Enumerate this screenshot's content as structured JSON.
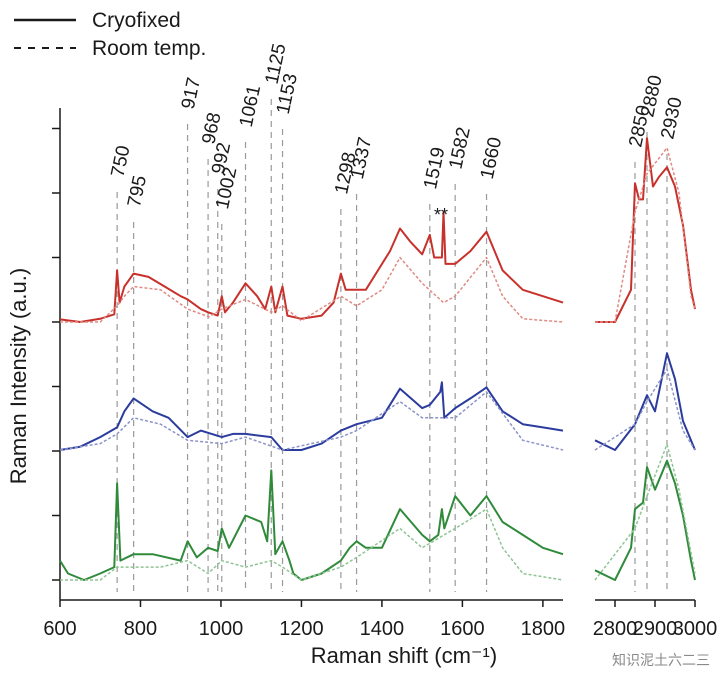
{
  "chart_data": {
    "type": "line",
    "xlabel": "Raman shift (cm⁻¹)",
    "ylabel": "Raman Intensity (a.u.)",
    "x_axis_segments": [
      {
        "range": [
          600,
          1850
        ],
        "ticks": [
          600,
          800,
          1000,
          1200,
          1400,
          1600,
          1800
        ]
      },
      {
        "range": [
          2750,
          3000
        ],
        "ticks": [
          2800,
          2900,
          3000
        ]
      }
    ],
    "y_ticks": "unlabeled",
    "legend": {
      "placement": "top-left",
      "entries": [
        {
          "label": "Cryofixed",
          "style": "solid"
        },
        {
          "label": "Room temp.",
          "style": "dashed"
        }
      ]
    },
    "peak_markers": [
      {
        "label": "750",
        "x": 742
      },
      {
        "label": "795",
        "x": 783
      },
      {
        "label": "917",
        "x": 917
      },
      {
        "label": "968",
        "x": 968
      },
      {
        "label": "992",
        "x": 992
      },
      {
        "label": "1002",
        "x": 1002
      },
      {
        "label": "1061",
        "x": 1061
      },
      {
        "label": "1125",
        "x": 1125
      },
      {
        "label": "1153",
        "x": 1153
      },
      {
        "label": "1298",
        "x": 1298
      },
      {
        "label": "1337",
        "x": 1337
      },
      {
        "label": "1519",
        "x": 1519
      },
      {
        "label": "1582",
        "x": 1582
      },
      {
        "label": "1660",
        "x": 1660
      },
      {
        "label": "2850",
        "x": 2850
      },
      {
        "label": "2880",
        "x": 2880
      },
      {
        "label": "2930",
        "x": 2930
      }
    ],
    "annotations": [
      "**"
    ],
    "series": [
      {
        "name": "Cryofixed",
        "color": "#c8312b",
        "style": "solid",
        "baseline": 0,
        "low": [
          [
            600,
            0.04
          ],
          [
            650,
            0.0
          ],
          [
            700,
            0.05
          ],
          [
            735,
            0.12
          ],
          [
            742,
            0.8
          ],
          [
            748,
            0.3
          ],
          [
            760,
            0.55
          ],
          [
            783,
            0.75
          ],
          [
            820,
            0.7
          ],
          [
            860,
            0.55
          ],
          [
            900,
            0.4
          ],
          [
            917,
            0.35
          ],
          [
            950,
            0.2
          ],
          [
            968,
            0.15
          ],
          [
            992,
            0.1
          ],
          [
            1002,
            0.4
          ],
          [
            1010,
            0.15
          ],
          [
            1030,
            0.3
          ],
          [
            1061,
            0.6
          ],
          [
            1090,
            0.4
          ],
          [
            1110,
            0.2
          ],
          [
            1125,
            0.55
          ],
          [
            1135,
            0.15
          ],
          [
            1153,
            0.55
          ],
          [
            1165,
            0.1
          ],
          [
            1200,
            0.05
          ],
          [
            1250,
            0.1
          ],
          [
            1280,
            0.3
          ],
          [
            1298,
            0.75
          ],
          [
            1310,
            0.5
          ],
          [
            1337,
            0.5
          ],
          [
            1360,
            0.5
          ],
          [
            1380,
            0.7
          ],
          [
            1420,
            1.1
          ],
          [
            1445,
            1.45
          ],
          [
            1470,
            1.25
          ],
          [
            1500,
            1.05
          ],
          [
            1519,
            1.35
          ],
          [
            1530,
            1.0
          ],
          [
            1549,
            1.0
          ],
          [
            1553,
            1.7
          ],
          [
            1558,
            0.9
          ],
          [
            1582,
            0.9
          ],
          [
            1620,
            1.1
          ],
          [
            1660,
            1.4
          ],
          [
            1700,
            0.8
          ],
          [
            1750,
            0.5
          ],
          [
            1800,
            0.4
          ],
          [
            1850,
            0.3
          ]
        ],
        "high": [
          [
            2750,
            0.0
          ],
          [
            2800,
            0.0
          ],
          [
            2840,
            0.5
          ],
          [
            2850,
            2.15
          ],
          [
            2860,
            1.9
          ],
          [
            2870,
            1.9
          ],
          [
            2880,
            2.85
          ],
          [
            2895,
            2.1
          ],
          [
            2910,
            2.25
          ],
          [
            2930,
            2.4
          ],
          [
            2950,
            2.1
          ],
          [
            2970,
            1.5
          ],
          [
            2990,
            0.5
          ],
          [
            3000,
            0.2
          ]
        ]
      },
      {
        "name": "Room temp.",
        "color": "#e08a82",
        "style": "dashed",
        "baseline": 0,
        "low": [
          [
            600,
            0.0
          ],
          [
            700,
            0.0
          ],
          [
            742,
            0.25
          ],
          [
            760,
            0.4
          ],
          [
            783,
            0.55
          ],
          [
            850,
            0.5
          ],
          [
            917,
            0.2
          ],
          [
            970,
            0.08
          ],
          [
            1002,
            0.2
          ],
          [
            1061,
            0.35
          ],
          [
            1125,
            0.15
          ],
          [
            1153,
            0.25
          ],
          [
            1200,
            0.02
          ],
          [
            1298,
            0.4
          ],
          [
            1337,
            0.25
          ],
          [
            1400,
            0.5
          ],
          [
            1445,
            1.0
          ],
          [
            1500,
            0.6
          ],
          [
            1553,
            0.3
          ],
          [
            1582,
            0.4
          ],
          [
            1660,
            1.0
          ],
          [
            1700,
            0.4
          ],
          [
            1750,
            0.05
          ],
          [
            1850,
            0.0
          ]
        ],
        "high": [
          [
            2750,
            0.0
          ],
          [
            2800,
            0.0
          ],
          [
            2850,
            1.7
          ],
          [
            2880,
            2.3
          ],
          [
            2930,
            2.7
          ],
          [
            2960,
            2.0
          ],
          [
            2990,
            0.4
          ],
          [
            3000,
            0.2
          ]
        ]
      },
      {
        "name": "Cryofixed",
        "color": "#2b3c9e",
        "style": "solid",
        "baseline": 0,
        "low": [
          [
            600,
            0.0
          ],
          [
            650,
            0.05
          ],
          [
            700,
            0.2
          ],
          [
            742,
            0.35
          ],
          [
            760,
            0.6
          ],
          [
            783,
            0.8
          ],
          [
            830,
            0.6
          ],
          [
            870,
            0.5
          ],
          [
            917,
            0.2
          ],
          [
            950,
            0.3
          ],
          [
            1002,
            0.2
          ],
          [
            1030,
            0.25
          ],
          [
            1061,
            0.25
          ],
          [
            1125,
            0.2
          ],
          [
            1153,
            0.0
          ],
          [
            1200,
            0.0
          ],
          [
            1250,
            0.1
          ],
          [
            1298,
            0.3
          ],
          [
            1337,
            0.4
          ],
          [
            1400,
            0.5
          ],
          [
            1445,
            0.95
          ],
          [
            1500,
            0.65
          ],
          [
            1519,
            0.7
          ],
          [
            1545,
            0.9
          ],
          [
            1549,
            1.05
          ],
          [
            1555,
            0.5
          ],
          [
            1582,
            0.65
          ],
          [
            1620,
            0.8
          ],
          [
            1660,
            0.97
          ],
          [
            1700,
            0.6
          ],
          [
            1750,
            0.4
          ],
          [
            1800,
            0.35
          ],
          [
            1850,
            0.3
          ]
        ],
        "high": [
          [
            2750,
            0.15
          ],
          [
            2800,
            0.0
          ],
          [
            2850,
            0.4
          ],
          [
            2880,
            0.85
          ],
          [
            2900,
            0.6
          ],
          [
            2930,
            1.5
          ],
          [
            2950,
            1.1
          ],
          [
            2970,
            0.45
          ],
          [
            3000,
            0.0
          ]
        ]
      },
      {
        "name": "Room temp.",
        "color": "#8b93c9",
        "style": "dashed",
        "baseline": 0,
        "low": [
          [
            600,
            0.0
          ],
          [
            700,
            0.1
          ],
          [
            742,
            0.25
          ],
          [
            783,
            0.5
          ],
          [
            850,
            0.4
          ],
          [
            917,
            0.15
          ],
          [
            1002,
            0.1
          ],
          [
            1061,
            0.2
          ],
          [
            1153,
            0.0
          ],
          [
            1298,
            0.2
          ],
          [
            1337,
            0.3
          ],
          [
            1445,
            0.75
          ],
          [
            1500,
            0.5
          ],
          [
            1582,
            0.5
          ],
          [
            1660,
            0.9
          ],
          [
            1750,
            0.15
          ],
          [
            1850,
            0.0
          ]
        ],
        "high": [
          [
            2750,
            0.0
          ],
          [
            2850,
            0.4
          ],
          [
            2880,
            0.75
          ],
          [
            2930,
            1.25
          ],
          [
            2970,
            0.3
          ],
          [
            3000,
            0.0
          ]
        ]
      },
      {
        "name": "Cryofixed",
        "color": "#2f8a3a",
        "style": "solid",
        "baseline": 0,
        "low": [
          [
            600,
            0.3
          ],
          [
            620,
            0.1
          ],
          [
            660,
            0.0
          ],
          [
            700,
            0.1
          ],
          [
            735,
            0.2
          ],
          [
            742,
            1.5
          ],
          [
            750,
            0.3
          ],
          [
            783,
            0.4
          ],
          [
            830,
            0.4
          ],
          [
            900,
            0.3
          ],
          [
            917,
            0.6
          ],
          [
            940,
            0.35
          ],
          [
            968,
            0.5
          ],
          [
            992,
            0.45
          ],
          [
            1002,
            0.8
          ],
          [
            1020,
            0.5
          ],
          [
            1061,
            1.0
          ],
          [
            1100,
            0.9
          ],
          [
            1115,
            0.6
          ],
          [
            1125,
            1.7
          ],
          [
            1135,
            0.4
          ],
          [
            1153,
            0.6
          ],
          [
            1170,
            0.3
          ],
          [
            1180,
            0.1
          ],
          [
            1200,
            0.0
          ],
          [
            1250,
            0.1
          ],
          [
            1298,
            0.3
          ],
          [
            1320,
            0.5
          ],
          [
            1337,
            0.6
          ],
          [
            1360,
            0.5
          ],
          [
            1400,
            0.5
          ],
          [
            1445,
            1.1
          ],
          [
            1500,
            0.7
          ],
          [
            1519,
            0.6
          ],
          [
            1540,
            0.7
          ],
          [
            1549,
            1.1
          ],
          [
            1555,
            0.8
          ],
          [
            1582,
            1.3
          ],
          [
            1620,
            1.0
          ],
          [
            1660,
            1.3
          ],
          [
            1700,
            0.9
          ],
          [
            1750,
            0.7
          ],
          [
            1800,
            0.5
          ],
          [
            1850,
            0.4
          ]
        ],
        "high": [
          [
            2750,
            0.15
          ],
          [
            2800,
            0.0
          ],
          [
            2840,
            0.5
          ],
          [
            2850,
            1.1
          ],
          [
            2870,
            1.2
          ],
          [
            2880,
            1.75
          ],
          [
            2900,
            1.4
          ],
          [
            2930,
            1.85
          ],
          [
            2950,
            1.5
          ],
          [
            2970,
            1.0
          ],
          [
            2990,
            0.3
          ],
          [
            3000,
            0.0
          ]
        ]
      },
      {
        "name": "Room temp.",
        "color": "#8ec493",
        "style": "dashed",
        "baseline": 0,
        "low": [
          [
            600,
            0.0
          ],
          [
            700,
            0.0
          ],
          [
            742,
            0.2
          ],
          [
            783,
            0.2
          ],
          [
            850,
            0.2
          ],
          [
            917,
            0.3
          ],
          [
            968,
            0.1
          ],
          [
            1002,
            0.3
          ],
          [
            1061,
            0.2
          ],
          [
            1125,
            0.3
          ],
          [
            1153,
            0.2
          ],
          [
            1200,
            0.0
          ],
          [
            1298,
            0.2
          ],
          [
            1337,
            0.35
          ],
          [
            1445,
            0.8
          ],
          [
            1500,
            0.5
          ],
          [
            1582,
            0.8
          ],
          [
            1660,
            1.1
          ],
          [
            1700,
            0.5
          ],
          [
            1750,
            0.1
          ],
          [
            1850,
            0.0
          ]
        ],
        "high": [
          [
            2750,
            0.0
          ],
          [
            2850,
            0.8
          ],
          [
            2880,
            1.3
          ],
          [
            2930,
            2.1
          ],
          [
            2960,
            1.4
          ],
          [
            3000,
            0.1
          ]
        ]
      }
    ]
  },
  "watermark": "知识泥土六二三"
}
